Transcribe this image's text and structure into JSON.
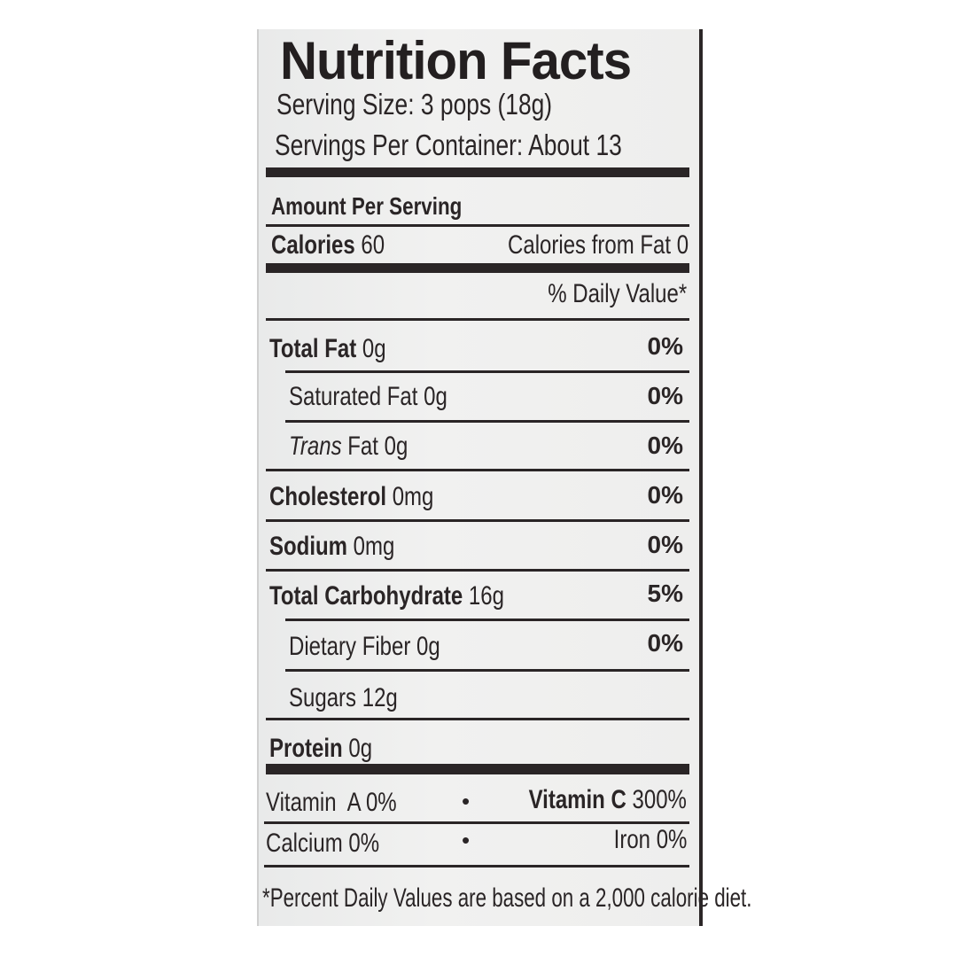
{
  "label": {
    "title": "Nutrition Facts",
    "serving_size": "Serving Size: 3 pops (18g)",
    "servings_per_container": "Servings Per Container: About 13",
    "amount_per_serving": "Amount Per Serving",
    "calories_label": "Calories",
    "calories_value": "60",
    "calories_from_fat": "Calories from Fat 0",
    "daily_value_header": "% Daily Value*",
    "nutrients": [
      {
        "name": "Total Fat",
        "amount": "0g",
        "dv": "0%"
      },
      {
        "name": "Saturated Fat",
        "amount": "0g",
        "dv": "0%"
      },
      {
        "name": "Trans",
        "suffix": "Fat",
        "amount": "0g",
        "dv": "0%"
      },
      {
        "name": "Cholesterol",
        "amount": "0mg",
        "dv": "0%"
      },
      {
        "name": "Sodium",
        "amount": "0mg",
        "dv": "0%"
      },
      {
        "name": "Total Carbohydrate",
        "amount": "16g",
        "dv": "5%"
      },
      {
        "name": "Dietary Fiber",
        "amount": "0g",
        "dv": "0%"
      },
      {
        "name": "Sugars",
        "amount": "12g"
      },
      {
        "name": "Protein",
        "amount": "0g"
      }
    ],
    "vitamins": {
      "vitamin_a": "Vitamin  A 0%",
      "vitamin_c_label": "Vitamin C",
      "vitamin_c_value": "300%",
      "calcium": "Calcium 0%",
      "iron": "Iron 0%",
      "separator": "•"
    },
    "footnote": "*Percent Daily Values are based on a 2,000 calorie diet."
  }
}
